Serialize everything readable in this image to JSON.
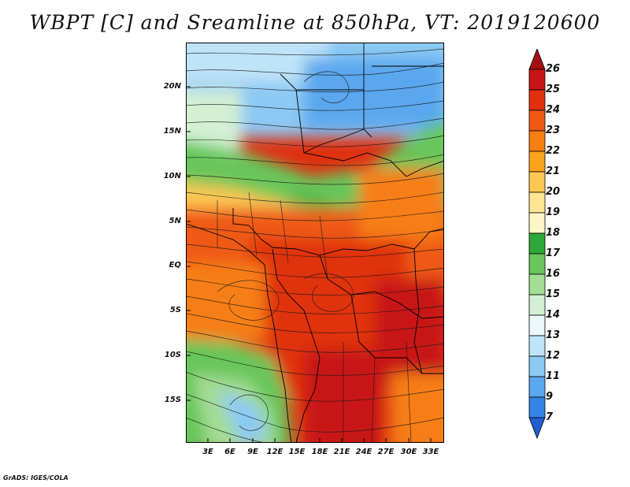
{
  "title": "WBPT [C] and Sreamline at 850hPa, VT: 2019120600",
  "footer": "GrADS: IGES/COLA",
  "map": {
    "lat_labels": [
      "20N",
      "15N",
      "10N",
      "5N",
      "EQ",
      "5S",
      "10S",
      "15S"
    ],
    "lon_labels": [
      "3E",
      "6E",
      "9E",
      "12E",
      "15E",
      "18E",
      "21E",
      "24E",
      "27E",
      "30E",
      "33E"
    ]
  },
  "colorbar": {
    "labels": [
      "26",
      "25",
      "24",
      "23",
      "22",
      "21",
      "20",
      "19",
      "18",
      "17",
      "16",
      "15",
      "14",
      "13",
      "12",
      "11",
      "9",
      "7"
    ],
    "colors": [
      "#a50f15",
      "#c81414",
      "#e03010",
      "#ee5a14",
      "#f77e12",
      "#fba31c",
      "#fdc852",
      "#fde592",
      "#fdf5c6",
      "#2ea838",
      "#68c65a",
      "#a4dd94",
      "#d3f0d3",
      "#e9f8fb",
      "#bfe4f8",
      "#8cc9f4",
      "#5aa7ee",
      "#3584e6",
      "#1f5fcf"
    ]
  }
}
